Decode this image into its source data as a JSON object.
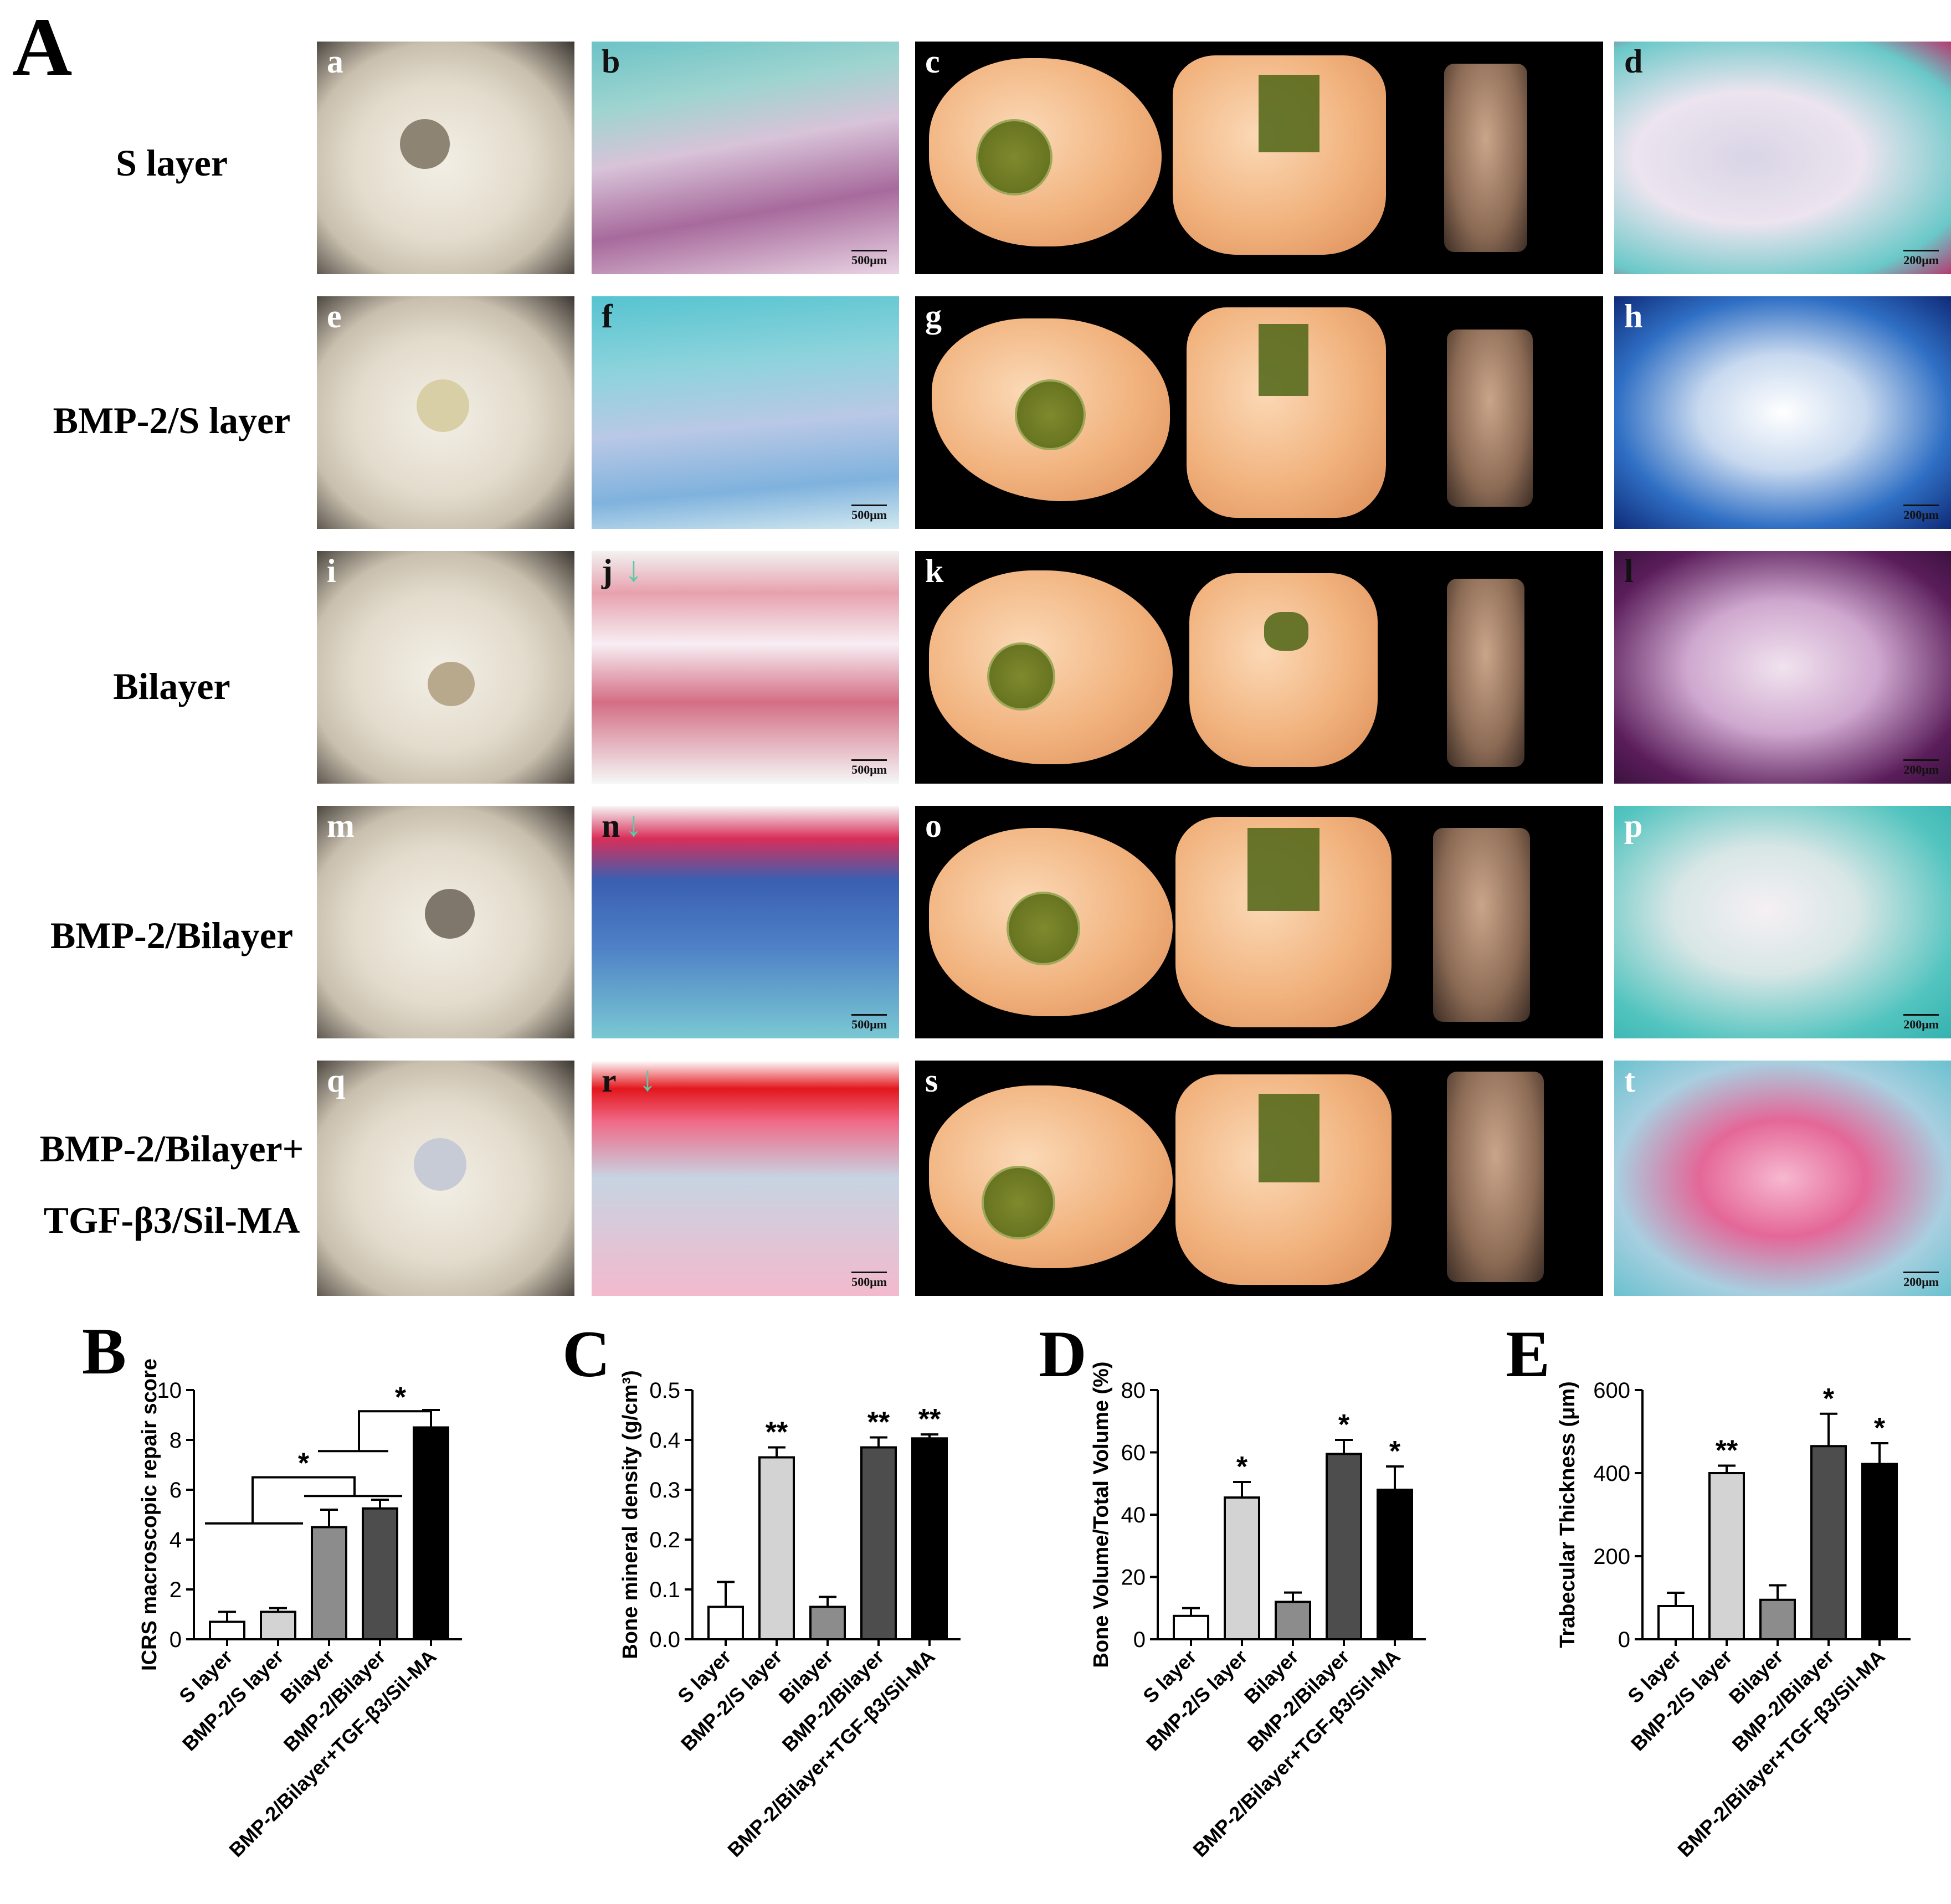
{
  "panel_A": {
    "letter": "A",
    "rows": [
      {
        "label": "S layer",
        "subs": [
          "a",
          "b",
          "c",
          "d"
        ],
        "scales": [
          "500μm",
          "200μm"
        ]
      },
      {
        "label": "BMP-2/S layer",
        "subs": [
          "e",
          "f",
          "g",
          "h"
        ],
        "scales": [
          "500μm",
          "200μm"
        ]
      },
      {
        "label": "Bilayer",
        "subs": [
          "i",
          "j",
          "k",
          "l"
        ],
        "scales": [
          "500μm",
          "200μm"
        ]
      },
      {
        "label": "BMP-2/Bilayer",
        "subs": [
          "m",
          "n",
          "o",
          "p"
        ],
        "scales": [
          "500μm",
          "200μm"
        ]
      },
      {
        "label_lines": [
          "BMP-2/Bilayer+",
          "TGF-β3/Sil-MA"
        ],
        "subs": [
          "q",
          "r",
          "s",
          "t"
        ],
        "scales": [
          "500μm",
          "200μm"
        ]
      }
    ],
    "arrow_glyph": "↓"
  },
  "chart_data": [
    {
      "letter": "B",
      "type": "bar",
      "ylabel": "ICRS macroscopic repair score",
      "ylim": [
        0,
        10
      ],
      "yticks": [
        "0",
        "2",
        "4",
        "6",
        "8",
        "10"
      ],
      "categories": [
        "S layer",
        "BMP-2/S layer",
        "Bilayer",
        "BMP-2/Bilayer",
        "BMP-2/Bilayer+TGF-β3/Sil-MA"
      ],
      "values": [
        0.7,
        1.1,
        4.5,
        5.25,
        8.5
      ],
      "errors": [
        0.4,
        0.15,
        0.7,
        0.35,
        0.7
      ],
      "bar_colors": [
        "#ffffff",
        "#d3d3d3",
        "#8c8c8c",
        "#4d4d4d",
        "#000000"
      ],
      "sig_labels": [
        "",
        "",
        "",
        "",
        ""
      ],
      "brackets": [
        {
          "label": "*"
        },
        {
          "label": "*"
        }
      ]
    },
    {
      "letter": "C",
      "type": "bar",
      "ylabel": "Bone mineral density (g/cm³)",
      "ylim": [
        0,
        0.5
      ],
      "yticks": [
        "0.0",
        "0.1",
        "0.2",
        "0.3",
        "0.4",
        "0.5"
      ],
      "categories": [
        "S layer",
        "BMP-2/S layer",
        "Bilayer",
        "BMP-2/Bilayer",
        "BMP-2/Bilayer+TGF-β3/Sil-MA"
      ],
      "values": [
        0.065,
        0.365,
        0.065,
        0.385,
        0.403
      ],
      "errors": [
        0.05,
        0.02,
        0.02,
        0.02,
        0.008
      ],
      "bar_colors": [
        "#ffffff",
        "#d3d3d3",
        "#8c8c8c",
        "#4d4d4d",
        "#000000"
      ],
      "sig_labels": [
        "",
        "**",
        "",
        "**",
        "**"
      ]
    },
    {
      "letter": "D",
      "type": "bar",
      "ylabel": "Bone Volume/Total Volume (%)",
      "ylim": [
        0,
        80
      ],
      "yticks": [
        "0",
        "20",
        "40",
        "60",
        "80"
      ],
      "categories": [
        "S layer",
        "BMP-2/S layer",
        "Bilayer",
        "BMP-2/Bilayer",
        "BMP-2/Bilayer+TGF-β3/Sil-MA"
      ],
      "values": [
        7.5,
        45.5,
        12.0,
        59.5,
        48.0
      ],
      "errors": [
        2.5,
        5.0,
        3.0,
        4.5,
        7.5
      ],
      "bar_colors": [
        "#ffffff",
        "#d3d3d3",
        "#8c8c8c",
        "#4d4d4d",
        "#000000"
      ],
      "sig_labels": [
        "",
        "*",
        "",
        "*",
        "*"
      ]
    },
    {
      "letter": "E",
      "type": "bar",
      "ylabel": "Trabecular Thickness (μm)",
      "ylim": [
        0,
        600
      ],
      "yticks": [
        "0",
        "200",
        "400",
        "600"
      ],
      "categories": [
        "S layer",
        "BMP-2/S layer",
        "Bilayer",
        "BMP-2/Bilayer",
        "BMP-2/Bilayer+TGF-β3/Sil-MA"
      ],
      "values": [
        80,
        400,
        95,
        465,
        422
      ],
      "errors": [
        32,
        18,
        35,
        78,
        50
      ],
      "bar_colors": [
        "#ffffff",
        "#d3d3d3",
        "#8c8c8c",
        "#4d4d4d",
        "#000000"
      ],
      "sig_labels": [
        "",
        "**",
        "",
        "*",
        "*"
      ]
    }
  ]
}
